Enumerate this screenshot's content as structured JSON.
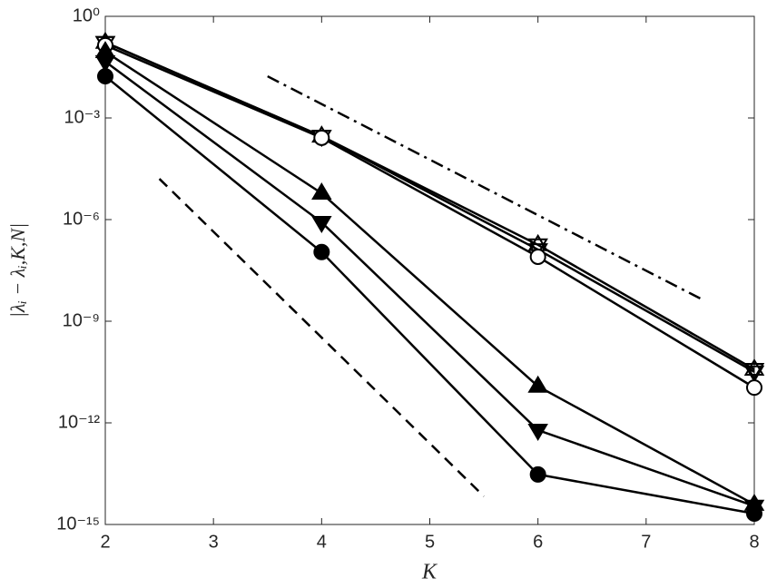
{
  "chart_data": {
    "type": "line",
    "xlabel": "K",
    "ylabel": "|λᵢ − λᵢ,K,N|",
    "x": [
      2,
      4,
      6,
      8
    ],
    "xlim": [
      2,
      8
    ],
    "xticks": [
      2,
      3,
      4,
      5,
      6,
      7,
      8
    ],
    "ylim": [
      1e-15,
      1
    ],
    "yscale": "log",
    "yticks": [
      {
        "value": 1,
        "label": "10⁰"
      },
      {
        "value": 0.001,
        "label": "10⁻³"
      },
      {
        "value": 1e-06,
        "label": "10⁻⁶"
      },
      {
        "value": 1e-09,
        "label": "10⁻⁹"
      },
      {
        "value": 1e-12,
        "label": "10⁻¹²"
      },
      {
        "value": 1e-15,
        "label": "10⁻¹⁵"
      }
    ],
    "series": [
      {
        "color": "#000000",
        "marker": "hexagram",
        "values": [
          0.17,
          0.00029,
          1.8e-07,
          3.8e-11
        ]
      },
      {
        "color": "#000000",
        "marker": "open-down-triangle",
        "values": [
          0.17,
          0.00029,
          1.3e-07,
          3.2e-11
        ]
      },
      {
        "color": "#000000",
        "marker": "open-circle",
        "values": [
          0.14,
          0.00026,
          8e-08,
          1.1e-11
        ]
      },
      {
        "color": "#000000",
        "marker": "filled-up-triangle",
        "values": [
          0.09,
          6e-06,
          1.2e-11,
          3.9e-15
        ]
      },
      {
        "color": "#000000",
        "marker": "filled-down-triangle",
        "values": [
          0.046,
          8.3e-07,
          6.1e-13,
          3.5e-15
        ]
      },
      {
        "color": "#000000",
        "marker": "filled-circle",
        "values": [
          0.017,
          1.1e-07,
          3e-14,
          2.1e-15
        ]
      }
    ],
    "reference_lines": [
      {
        "color": "#000000",
        "dash": "14 6 3 6",
        "x": [
          3.5,
          7.5
        ],
        "values": [
          0.017,
          4.7e-09
        ]
      },
      {
        "color": "#000000",
        "dash": "12 8",
        "x": [
          2.5,
          5.5
        ],
        "values": [
          1.6e-05,
          6.8e-15
        ]
      }
    ]
  }
}
